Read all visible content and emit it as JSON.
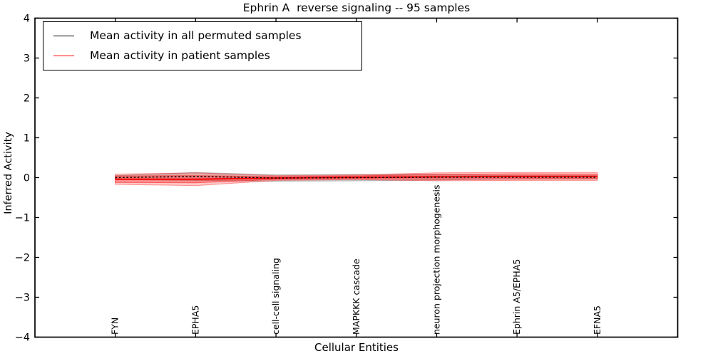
{
  "title": "Ephrin A  reverse signaling -- 95 samples",
  "legend": {
    "entries": [
      {
        "label": "Mean activity in all permuted samples",
        "color": "#000000"
      },
      {
        "label": "Mean activity in patient samples",
        "color": "#ff0000"
      }
    ]
  },
  "chart_data": {
    "type": "line",
    "title": "Ephrin A  reverse signaling -- 95 samples",
    "xlabel": "Cellular Entities",
    "ylabel": "Inferred Activity",
    "xlim": [
      0,
      8
    ],
    "ylim": [
      -4,
      4
    ],
    "grid": false,
    "legend_position": "upper left",
    "x": [
      1,
      2,
      3,
      4,
      5,
      6,
      7
    ],
    "xticklabels": [
      "FYN",
      "EPHA5",
      "cell-cell signaling",
      "MAPKKK cascade",
      "neuron projection morphogenesis",
      "Ephrin A5/EPHA5",
      "EFNA5"
    ],
    "yticks": [
      {
        "label": "4",
        "value": 4
      },
      {
        "label": "3",
        "value": 3
      },
      {
        "label": "2",
        "value": 2
      },
      {
        "label": "1",
        "value": 1
      },
      {
        "label": "0",
        "value": 0
      },
      {
        "label": "−1",
        "value": -1
      },
      {
        "label": "−2",
        "value": -2
      },
      {
        "label": "−3",
        "value": -3
      },
      {
        "label": "−4",
        "value": -4
      }
    ],
    "series": [
      {
        "name": "Mean activity in all permuted samples",
        "color": "#000000",
        "style": "dashed",
        "width": 1.4,
        "values": [
          0.0,
          0.03,
          -0.01,
          0.0,
          0.01,
          0.01,
          0.01
        ]
      },
      {
        "name": "Mean activity in patient samples",
        "color": "#ff0000",
        "style": "solid",
        "width": 1.9,
        "values": [
          -0.04,
          -0.04,
          -0.01,
          0.01,
          0.02,
          0.03,
          0.03
        ]
      }
    ],
    "bands": [
      {
        "name": "permuted-samples-spread",
        "color": "#808080",
        "opacity": 0.32,
        "center": [
          0.0,
          0.03,
          -0.01,
          0.0,
          0.01,
          0.01,
          0.01
        ],
        "halfwidth": [
          0.05,
          0.1,
          0.08,
          0.08,
          0.07,
          0.04,
          0.04
        ]
      },
      {
        "name": "patient-samples-spread-outer",
        "color": "#ff0000",
        "opacity": 0.22,
        "center": [
          -0.04,
          -0.04,
          -0.01,
          0.01,
          0.02,
          0.03,
          0.03
        ],
        "halfwidth": [
          0.13,
          0.16,
          0.06,
          0.06,
          0.1,
          0.1,
          0.1
        ]
      },
      {
        "name": "patient-samples-spread-inner",
        "color": "#ff0000",
        "opacity": 0.28,
        "center": [
          -0.04,
          -0.04,
          -0.01,
          0.01,
          0.02,
          0.03,
          0.03
        ],
        "halfwidth": [
          0.08,
          0.09,
          0.035,
          0.035,
          0.06,
          0.065,
          0.06
        ]
      }
    ]
  }
}
